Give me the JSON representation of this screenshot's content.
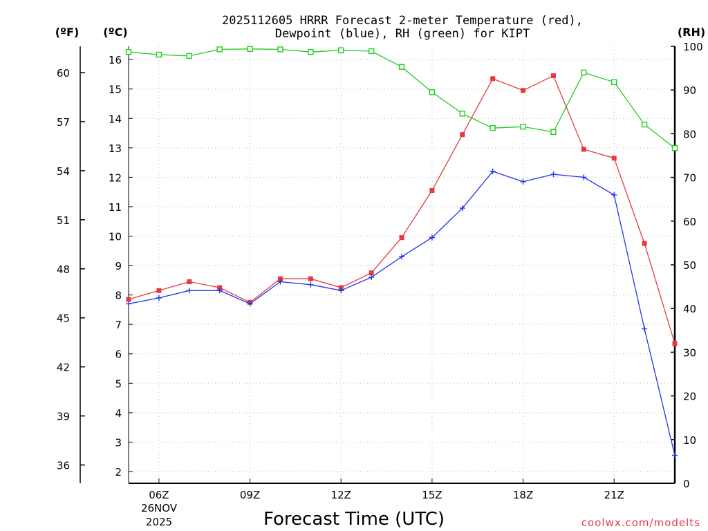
{
  "chart_data": {
    "type": "line",
    "title_line1": "2025112605 HRRR Forecast 2-meter Temperature (red),",
    "title_line2": "Dewpoint (blue), RH (green) for KIPT",
    "xlabel": "Forecast Time (UTC)",
    "credit": "coolwx.com/modelts",
    "date_label_line1": "26NOV",
    "date_label_line2": "2025",
    "units": {
      "fahrenheit": "(ºF)",
      "celsius": "(ºC)",
      "rh": "(RH)"
    },
    "x_hours": [
      5,
      6,
      7,
      8,
      9,
      10,
      11,
      12,
      13,
      14,
      15,
      16,
      17,
      18,
      19,
      20,
      21,
      22,
      23
    ],
    "x_tick_hours": [
      6,
      9,
      12,
      15,
      18,
      21
    ],
    "x_tick_labels": [
      "06Z",
      "09Z",
      "12Z",
      "15Z",
      "18Z",
      "21Z"
    ],
    "xlim": [
      5,
      23
    ],
    "celsius_ticks": [
      2,
      3,
      4,
      5,
      6,
      7,
      8,
      9,
      10,
      11,
      12,
      13,
      14,
      15,
      16
    ],
    "celsius_lim": [
      1.6,
      16.45
    ],
    "fahrenheit_ticks": [
      36,
      39,
      42,
      45,
      48,
      51,
      54,
      57,
      60
    ],
    "rh_ticks": [
      0,
      10,
      20,
      30,
      40,
      50,
      60,
      70,
      80,
      90,
      100
    ],
    "rh_lim": [
      0,
      100
    ],
    "series": [
      {
        "name": "2-meter Temperature",
        "unit": "C",
        "color": "#e8383f",
        "marker": "filled-square",
        "values": [
          7.85,
          8.15,
          8.45,
          8.25,
          7.75,
          8.55,
          8.55,
          8.25,
          8.75,
          9.95,
          11.55,
          13.45,
          15.35,
          14.95,
          15.45,
          12.95,
          12.65,
          9.75,
          6.35
        ]
      },
      {
        "name": "Dewpoint",
        "unit": "C",
        "color": "#2233e6",
        "marker": "plus",
        "values": [
          7.7,
          7.9,
          8.15,
          8.15,
          7.7,
          8.45,
          8.35,
          8.15,
          8.6,
          9.3,
          9.95,
          10.95,
          12.2,
          11.85,
          12.1,
          12.0,
          11.4,
          6.85,
          2.55
        ]
      },
      {
        "name": "Relative Humidity",
        "unit": "%",
        "color": "#22cc22",
        "marker": "open-square",
        "values": [
          98.7,
          98.1,
          97.8,
          99.3,
          99.4,
          99.3,
          98.7,
          99.1,
          98.9,
          95.3,
          89.5,
          84.6,
          81.3,
          81.6,
          80.4,
          94.0,
          91.8,
          82.1,
          76.7
        ]
      }
    ]
  }
}
